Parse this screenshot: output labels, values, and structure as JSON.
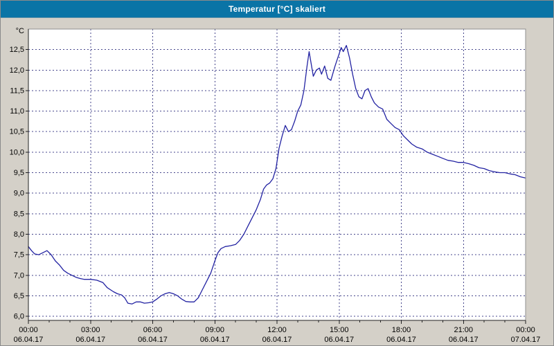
{
  "window": {
    "title": "Temperatur [°C] skaliert"
  },
  "colors": {
    "titlebar": "#0a74a6",
    "background": "#d4d0c8",
    "plot_background": "#ffffff",
    "grid": "#46468c",
    "axis": "#202020",
    "border": "#8f8f8f",
    "line": "#2222a2",
    "text": "#000000",
    "title_text": "#ffffff"
  },
  "chart_data": {
    "type": "line",
    "title": "Temperatur [°C] skaliert",
    "xlabel": "",
    "ylabel": "°C",
    "ylim": [
      5.9,
      13.0
    ],
    "xlim_hours": [
      0,
      24
    ],
    "grid": "dashed",
    "legend": "none",
    "y_ticks": [
      {
        "v": 6.0,
        "label": "6,0"
      },
      {
        "v": 6.5,
        "label": "6,5"
      },
      {
        "v": 7.0,
        "label": "7,0"
      },
      {
        "v": 7.5,
        "label": "7,5"
      },
      {
        "v": 8.0,
        "label": "8,0"
      },
      {
        "v": 8.5,
        "label": "8,5"
      },
      {
        "v": 9.0,
        "label": "9,0"
      },
      {
        "v": 9.5,
        "label": "9,5"
      },
      {
        "v": 10.0,
        "label": "10,0"
      },
      {
        "v": 10.5,
        "label": "10,5"
      },
      {
        "v": 11.0,
        "label": "11,0"
      },
      {
        "v": 11.5,
        "label": "11,5"
      },
      {
        "v": 12.0,
        "label": "12,0"
      },
      {
        "v": 12.5,
        "label": "12,5"
      }
    ],
    "x_ticks": [
      {
        "h": 0,
        "time": "00:00",
        "date": "06.04.17"
      },
      {
        "h": 3,
        "time": "03:00",
        "date": "06.04.17"
      },
      {
        "h": 6,
        "time": "06:00",
        "date": "06.04.17"
      },
      {
        "h": 9,
        "time": "09:00",
        "date": "06.04.17"
      },
      {
        "h": 12,
        "time": "12:00",
        "date": "06.04.17"
      },
      {
        "h": 15,
        "time": "15:00",
        "date": "06.04.17"
      },
      {
        "h": 18,
        "time": "18:00",
        "date": "06.04.17"
      },
      {
        "h": 21,
        "time": "21:00",
        "date": "06.04.17"
      },
      {
        "h": 24,
        "time": "00:00",
        "date": "07.04.17"
      }
    ],
    "series": [
      {
        "name": "Temperatur",
        "unit": "°C",
        "points": [
          [
            0,
            7.7
          ],
          [
            0.15,
            7.6
          ],
          [
            0.3,
            7.52
          ],
          [
            0.5,
            7.5
          ],
          [
            0.7,
            7.55
          ],
          [
            0.9,
            7.6
          ],
          [
            1.1,
            7.5
          ],
          [
            1.3,
            7.35
          ],
          [
            1.5,
            7.25
          ],
          [
            1.7,
            7.12
          ],
          [
            1.9,
            7.05
          ],
          [
            2.1,
            7.0
          ],
          [
            2.3,
            6.95
          ],
          [
            2.5,
            6.92
          ],
          [
            2.7,
            6.9
          ],
          [
            3.0,
            6.9
          ],
          [
            3.3,
            6.88
          ],
          [
            3.6,
            6.82
          ],
          [
            3.8,
            6.7
          ],
          [
            4.1,
            6.6
          ],
          [
            4.3,
            6.55
          ],
          [
            4.5,
            6.52
          ],
          [
            4.65,
            6.45
          ],
          [
            4.8,
            6.32
          ],
          [
            5.0,
            6.3
          ],
          [
            5.2,
            6.35
          ],
          [
            5.4,
            6.35
          ],
          [
            5.6,
            6.32
          ],
          [
            5.8,
            6.33
          ],
          [
            6.0,
            6.35
          ],
          [
            6.2,
            6.42
          ],
          [
            6.4,
            6.5
          ],
          [
            6.6,
            6.55
          ],
          [
            6.8,
            6.58
          ],
          [
            7.0,
            6.55
          ],
          [
            7.2,
            6.5
          ],
          [
            7.4,
            6.42
          ],
          [
            7.6,
            6.36
          ],
          [
            7.8,
            6.35
          ],
          [
            8.0,
            6.35
          ],
          [
            8.2,
            6.45
          ],
          [
            8.4,
            6.65
          ],
          [
            8.6,
            6.85
          ],
          [
            8.8,
            7.05
          ],
          [
            9.0,
            7.35
          ],
          [
            9.15,
            7.55
          ],
          [
            9.3,
            7.65
          ],
          [
            9.5,
            7.7
          ],
          [
            9.75,
            7.72
          ],
          [
            10.0,
            7.75
          ],
          [
            10.2,
            7.85
          ],
          [
            10.4,
            8.0
          ],
          [
            10.6,
            8.2
          ],
          [
            10.8,
            8.4
          ],
          [
            11.0,
            8.6
          ],
          [
            11.2,
            8.85
          ],
          [
            11.35,
            9.1
          ],
          [
            11.5,
            9.2
          ],
          [
            11.65,
            9.25
          ],
          [
            11.8,
            9.35
          ],
          [
            11.95,
            9.6
          ],
          [
            12.1,
            10.1
          ],
          [
            12.25,
            10.4
          ],
          [
            12.4,
            10.65
          ],
          [
            12.55,
            10.5
          ],
          [
            12.7,
            10.55
          ],
          [
            12.85,
            10.75
          ],
          [
            13.0,
            11.0
          ],
          [
            13.15,
            11.15
          ],
          [
            13.3,
            11.5
          ],
          [
            13.45,
            12.1
          ],
          [
            13.55,
            12.45
          ],
          [
            13.65,
            12.15
          ],
          [
            13.75,
            11.85
          ],
          [
            13.9,
            12.0
          ],
          [
            14.05,
            12.05
          ],
          [
            14.15,
            11.9
          ],
          [
            14.3,
            12.1
          ],
          [
            14.45,
            11.8
          ],
          [
            14.6,
            11.75
          ],
          [
            14.8,
            12.1
          ],
          [
            15.0,
            12.4
          ],
          [
            15.1,
            12.55
          ],
          [
            15.2,
            12.45
          ],
          [
            15.35,
            12.6
          ],
          [
            15.5,
            12.3
          ],
          [
            15.65,
            11.9
          ],
          [
            15.8,
            11.55
          ],
          [
            15.95,
            11.35
          ],
          [
            16.1,
            11.3
          ],
          [
            16.25,
            11.5
          ],
          [
            16.4,
            11.55
          ],
          [
            16.55,
            11.35
          ],
          [
            16.7,
            11.2
          ],
          [
            16.9,
            11.1
          ],
          [
            17.1,
            11.05
          ],
          [
            17.3,
            10.8
          ],
          [
            17.5,
            10.7
          ],
          [
            17.7,
            10.6
          ],
          [
            17.9,
            10.55
          ],
          [
            18.1,
            10.4
          ],
          [
            18.3,
            10.3
          ],
          [
            18.5,
            10.2
          ],
          [
            18.75,
            10.12
          ],
          [
            19.0,
            10.08
          ],
          [
            19.25,
            10.0
          ],
          [
            19.5,
            9.95
          ],
          [
            19.75,
            9.9
          ],
          [
            20.0,
            9.85
          ],
          [
            20.25,
            9.8
          ],
          [
            20.5,
            9.78
          ],
          [
            20.75,
            9.75
          ],
          [
            21.0,
            9.75
          ],
          [
            21.25,
            9.72
          ],
          [
            21.5,
            9.68
          ],
          [
            21.75,
            9.62
          ],
          [
            22.0,
            9.6
          ],
          [
            22.25,
            9.55
          ],
          [
            22.5,
            9.52
          ],
          [
            22.75,
            9.5
          ],
          [
            23.0,
            9.5
          ],
          [
            23.25,
            9.47
          ],
          [
            23.5,
            9.45
          ],
          [
            23.75,
            9.4
          ],
          [
            24.0,
            9.37
          ]
        ]
      }
    ]
  }
}
